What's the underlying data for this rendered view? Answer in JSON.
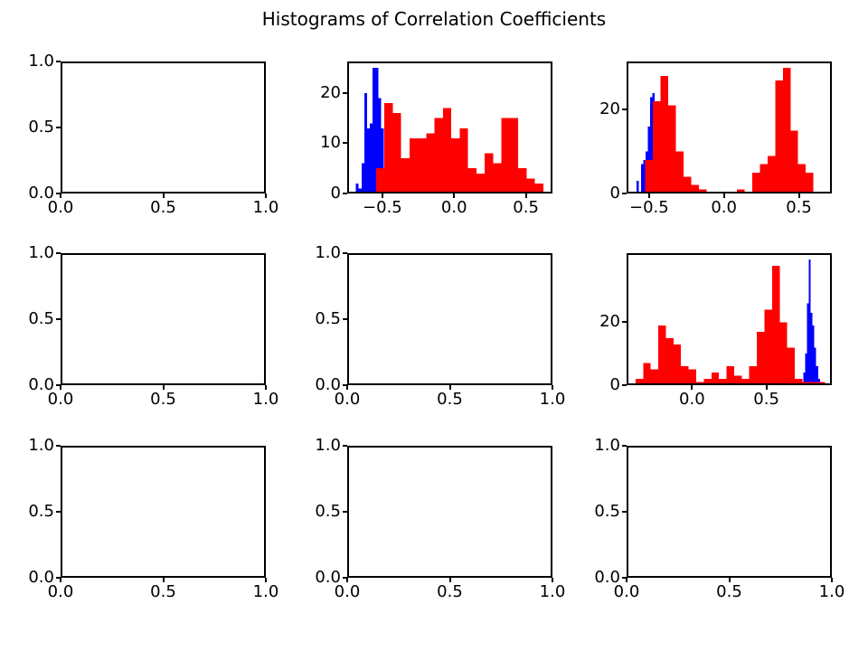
{
  "title": "Histograms of Correlation Coefficients",
  "figure": {
    "background": "#ffffff",
    "grid_rows": 3,
    "grid_cols": 3
  },
  "colors": {
    "red_series": "#ff0000",
    "blue_series": "#0000ff",
    "axis": "#000000",
    "text": "#000000"
  },
  "chart_data": [
    {
      "id": "subplot-r0c0",
      "type": "bar",
      "position": {
        "row": 0,
        "col": 0
      },
      "empty": true,
      "xlim": [
        0,
        1
      ],
      "ylim": [
        0,
        1
      ],
      "xticks": [
        0,
        0.5,
        1
      ],
      "xtick_labels": [
        "0.0",
        "0.5",
        "1.0"
      ],
      "yticks": [
        0,
        0.5,
        1
      ],
      "ytick_labels": [
        "0.0",
        "0.5",
        "1.0"
      ],
      "series": []
    },
    {
      "id": "subplot-r0c1",
      "type": "bar",
      "position": {
        "row": 0,
        "col": 1
      },
      "empty": false,
      "xlim": [
        -0.745,
        0.685
      ],
      "ylim": [
        0,
        26.3
      ],
      "xticks": [
        -0.5,
        0,
        0.5
      ],
      "xtick_labels": [
        "−0.5",
        "0.0",
        "0.5"
      ],
      "yticks": [
        0,
        10,
        20
      ],
      "ytick_labels": [
        "0",
        "10",
        "20"
      ],
      "series": [
        {
          "name": "blue-histogram",
          "color": "#0000ff",
          "bin_start": -0.685,
          "bin_width": 0.0196,
          "heights": [
            2,
            1,
            6,
            20,
            13,
            14,
            25,
            25,
            19,
            13
          ]
        },
        {
          "name": "red-histogram",
          "color": "#ff0000",
          "bin_start": -0.545,
          "bin_width": 0.0583,
          "heights": [
            5,
            18,
            16,
            7,
            11,
            11,
            12,
            15,
            17,
            11,
            13,
            5,
            4,
            8,
            6,
            15,
            15,
            5,
            3,
            2
          ]
        }
      ]
    },
    {
      "id": "subplot-r0c2",
      "type": "bar",
      "position": {
        "row": 0,
        "col": 2
      },
      "empty": false,
      "xlim": [
        -0.65,
        0.72
      ],
      "ylim": [
        0,
        31.5
      ],
      "xticks": [
        -0.5,
        0,
        0.5
      ],
      "xtick_labels": [
        "−0.5",
        "0.0",
        "0.5"
      ],
      "yticks": [
        0,
        20
      ],
      "ytick_labels": [
        "0",
        "20"
      ],
      "series": [
        {
          "name": "blue-histogram",
          "color": "#0000ff",
          "bin_start": -0.583,
          "bin_width": 0.015,
          "heights": [
            3,
            0,
            7,
            8,
            10,
            16,
            23,
            24,
            20,
            12,
            6
          ]
        },
        {
          "name": "red-histogram",
          "color": "#ff0000",
          "bin_start": -0.525,
          "bin_width": 0.051,
          "heights": [
            8,
            22,
            28,
            21,
            10,
            4,
            2,
            1,
            0,
            0,
            0,
            0,
            1,
            0,
            5,
            7,
            9,
            27,
            30,
            15,
            7,
            5
          ]
        }
      ]
    },
    {
      "id": "subplot-r1c0",
      "type": "bar",
      "position": {
        "row": 1,
        "col": 0
      },
      "empty": true,
      "xlim": [
        0,
        1
      ],
      "ylim": [
        0,
        1
      ],
      "xticks": [
        0,
        0.5,
        1
      ],
      "xtick_labels": [
        "0.0",
        "0.5",
        "1.0"
      ],
      "yticks": [
        0,
        0.5,
        1
      ],
      "ytick_labels": [
        "0.0",
        "0.5",
        "1.0"
      ],
      "series": []
    },
    {
      "id": "subplot-r1c1",
      "type": "bar",
      "position": {
        "row": 1,
        "col": 1
      },
      "empty": true,
      "xlim": [
        0,
        1
      ],
      "ylim": [
        0,
        1
      ],
      "xticks": [
        0,
        0.5,
        1
      ],
      "xtick_labels": [
        "0.0",
        "0.5",
        "1.0"
      ],
      "yticks": [
        0,
        0.5,
        1
      ],
      "ytick_labels": [
        "0.0",
        "0.5",
        "1.0"
      ],
      "series": []
    },
    {
      "id": "subplot-r1c2",
      "type": "bar",
      "position": {
        "row": 1,
        "col": 2
      },
      "empty": false,
      "xlim": [
        -0.44,
        0.94
      ],
      "ylim": [
        0,
        42
      ],
      "xticks": [
        0,
        0.5
      ],
      "xtick_labels": [
        "0.0",
        "0.5"
      ],
      "yticks": [
        0,
        20
      ],
      "ytick_labels": [
        "0",
        "20"
      ],
      "series": [
        {
          "name": "blue-histogram",
          "color": "#0000ff",
          "bin_start": 0.735,
          "bin_width": 0.0125,
          "heights": [
            1,
            4,
            10,
            26,
            40,
            23,
            19,
            12,
            6,
            2
          ]
        },
        {
          "name": "red-histogram",
          "color": "#ff0000",
          "bin_start": -0.38,
          "bin_width": 0.051,
          "heights": [
            2,
            7,
            5,
            19,
            15,
            13,
            6,
            5,
            1,
            2,
            4,
            2,
            6,
            3,
            2,
            6,
            17,
            24,
            38,
            20,
            12,
            2,
            1,
            1,
            1
          ]
        }
      ]
    },
    {
      "id": "subplot-r2c0",
      "type": "bar",
      "position": {
        "row": 2,
        "col": 0
      },
      "empty": true,
      "xlim": [
        0,
        1
      ],
      "ylim": [
        0,
        1
      ],
      "xticks": [
        0,
        0.5,
        1
      ],
      "xtick_labels": [
        "0.0",
        "0.5",
        "1.0"
      ],
      "yticks": [
        0,
        0.5,
        1
      ],
      "ytick_labels": [
        "0.0",
        "0.5",
        "1.0"
      ],
      "series": []
    },
    {
      "id": "subplot-r2c1",
      "type": "bar",
      "position": {
        "row": 2,
        "col": 1
      },
      "empty": true,
      "xlim": [
        0,
        1
      ],
      "ylim": [
        0,
        1
      ],
      "xticks": [
        0,
        0.5,
        1
      ],
      "xtick_labels": [
        "0.0",
        "0.5",
        "1.0"
      ],
      "yticks": [
        0,
        0.5,
        1
      ],
      "ytick_labels": [
        "0.0",
        "0.5",
        "1.0"
      ],
      "series": []
    },
    {
      "id": "subplot-r2c2",
      "type": "bar",
      "position": {
        "row": 2,
        "col": 2
      },
      "empty": true,
      "xlim": [
        0,
        1
      ],
      "ylim": [
        0,
        1
      ],
      "xticks": [
        0,
        0.5,
        1
      ],
      "xtick_labels": [
        "0.0",
        "0.5",
        "1.0"
      ],
      "yticks": [
        0,
        0.5,
        1
      ],
      "ytick_labels": [
        "0.0",
        "0.5",
        "1.0"
      ],
      "series": []
    }
  ]
}
